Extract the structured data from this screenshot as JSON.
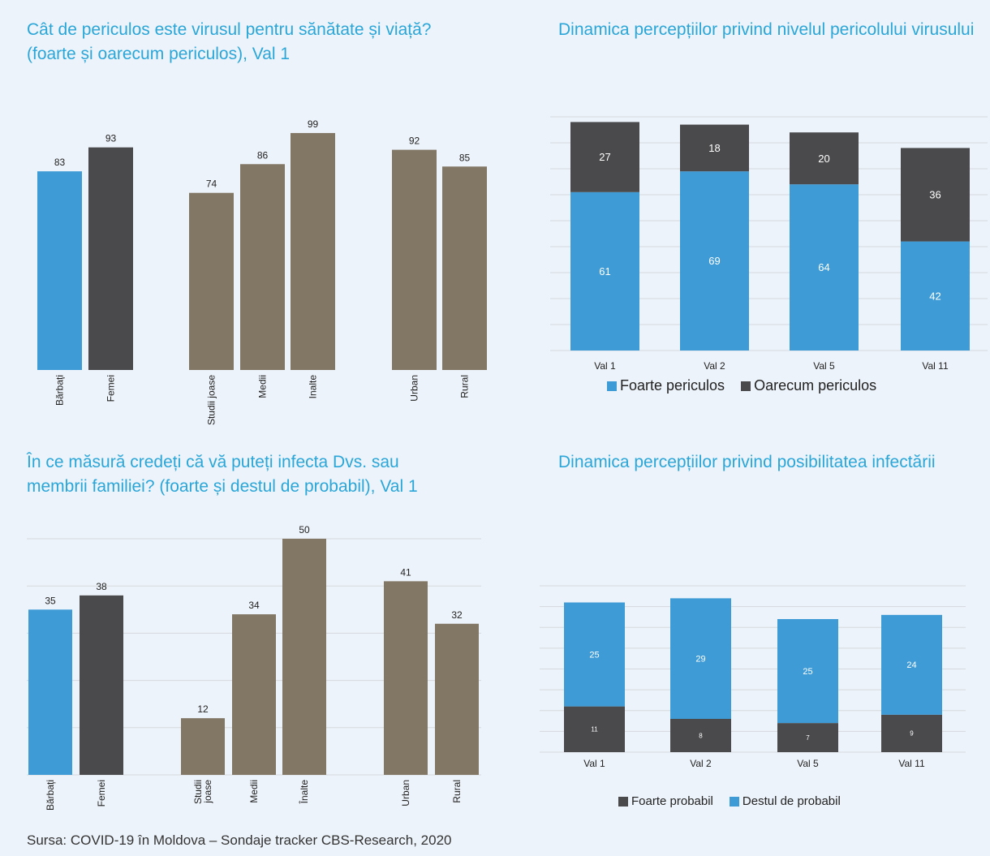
{
  "colors": {
    "blue": "#3e9bd6",
    "dark": "#4a4a4d",
    "brown": "#827665",
    "title": "#2aa6d8",
    "grid": "#d5d9de"
  },
  "source": "Sursa: COVID-19 în Moldova – Sondaje tracker CBS-Research, 2020",
  "chart_data": [
    {
      "type": "bar",
      "title": "Cât de periculos este virusul pentru sănătate și viață? (foarte și oarecum periculos), Val 1",
      "categories": [
        "Bărbați",
        "Femei",
        "Studii joase",
        "Medii",
        "Inalte",
        "Urban",
        "Rural"
      ],
      "values": [
        83,
        93,
        74,
        86,
        99,
        92,
        85
      ],
      "bar_colors": [
        "blue",
        "dark",
        "brown",
        "brown",
        "brown",
        "brown",
        "brown"
      ],
      "ylim": [
        0,
        100
      ],
      "grid": false
    },
    {
      "type": "bar",
      "stacked": true,
      "title": "Dinamica percepțiilor privind nivelul pericolului virusului",
      "categories": [
        "Val 1",
        "Val 2",
        "Val 5",
        "Val 11"
      ],
      "series": [
        {
          "name": "Foarte periculos",
          "values": [
            61,
            69,
            64,
            42
          ],
          "color": "blue"
        },
        {
          "name": "Oarecum periculos",
          "values": [
            27,
            18,
            20,
            36
          ],
          "color": "dark"
        }
      ],
      "ylim": [
        0,
        90
      ],
      "grid": true,
      "legend": "bottom"
    },
    {
      "type": "bar",
      "title": "În ce măsură credeți că vă puteți infecta Dvs. sau membrii familiei? (foarte și destul de probabil), Val 1",
      "categories": [
        "Bărbați",
        "Femei",
        "Studii joase",
        "Medii",
        "Înalte",
        "Urban",
        "Rural"
      ],
      "values": [
        35,
        38,
        12,
        34,
        50,
        41,
        32
      ],
      "bar_colors": [
        "blue",
        "dark",
        "brown",
        "brown",
        "brown",
        "brown",
        "brown"
      ],
      "ylim": [
        0,
        50
      ],
      "grid": true
    },
    {
      "type": "bar",
      "stacked": true,
      "title": "Dinamica percepțiilor privind posibilitatea infectării",
      "categories": [
        "Val 1",
        "Val 2",
        "Val 5",
        "Val 11"
      ],
      "series": [
        {
          "name": "Foarte probabil",
          "values": [
            11,
            8,
            7,
            9
          ],
          "color": "dark"
        },
        {
          "name": "Destul de probabil",
          "values": [
            25,
            29,
            25,
            24
          ],
          "color": "blue"
        }
      ],
      "ylim": [
        0,
        40
      ],
      "grid": true,
      "legend": "bottom"
    }
  ]
}
